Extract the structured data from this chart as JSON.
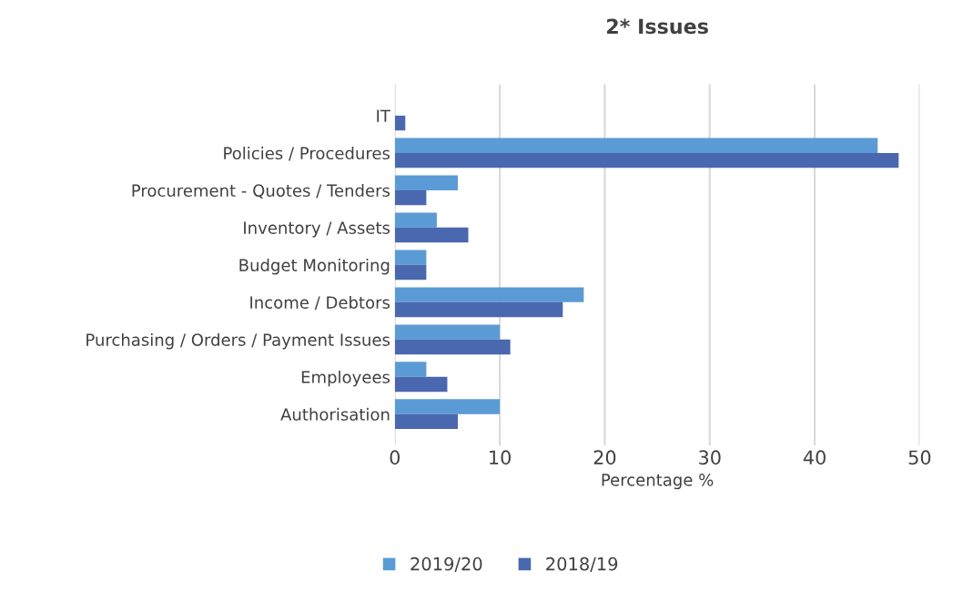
{
  "chart_data": {
    "type": "bar",
    "orientation": "horizontal",
    "title": "2* Issues",
    "xlabel": "Percentage %",
    "categories": [
      "IT",
      "Policies / Procedures",
      "Procurement - Quotes / Tenders",
      "Inventory / Assets",
      "Budget Monitoring",
      "Income / Debtors",
      "Purchasing / Orders / Payment Issues",
      "Employees",
      "Authorisation"
    ],
    "series": [
      {
        "name": "2019/20",
        "color": "#5b9bd5",
        "values": [
          0,
          46,
          6,
          4,
          3,
          18,
          10,
          3,
          10
        ]
      },
      {
        "name": "2018/19",
        "color": "#4a68b0",
        "values": [
          1,
          48,
          3,
          7,
          3,
          16,
          11,
          5,
          6
        ]
      }
    ],
    "xlim": [
      0,
      50
    ],
    "xticks": [
      0,
      10,
      20,
      30,
      40,
      50
    ],
    "grid": "x",
    "legend": "bottom"
  }
}
